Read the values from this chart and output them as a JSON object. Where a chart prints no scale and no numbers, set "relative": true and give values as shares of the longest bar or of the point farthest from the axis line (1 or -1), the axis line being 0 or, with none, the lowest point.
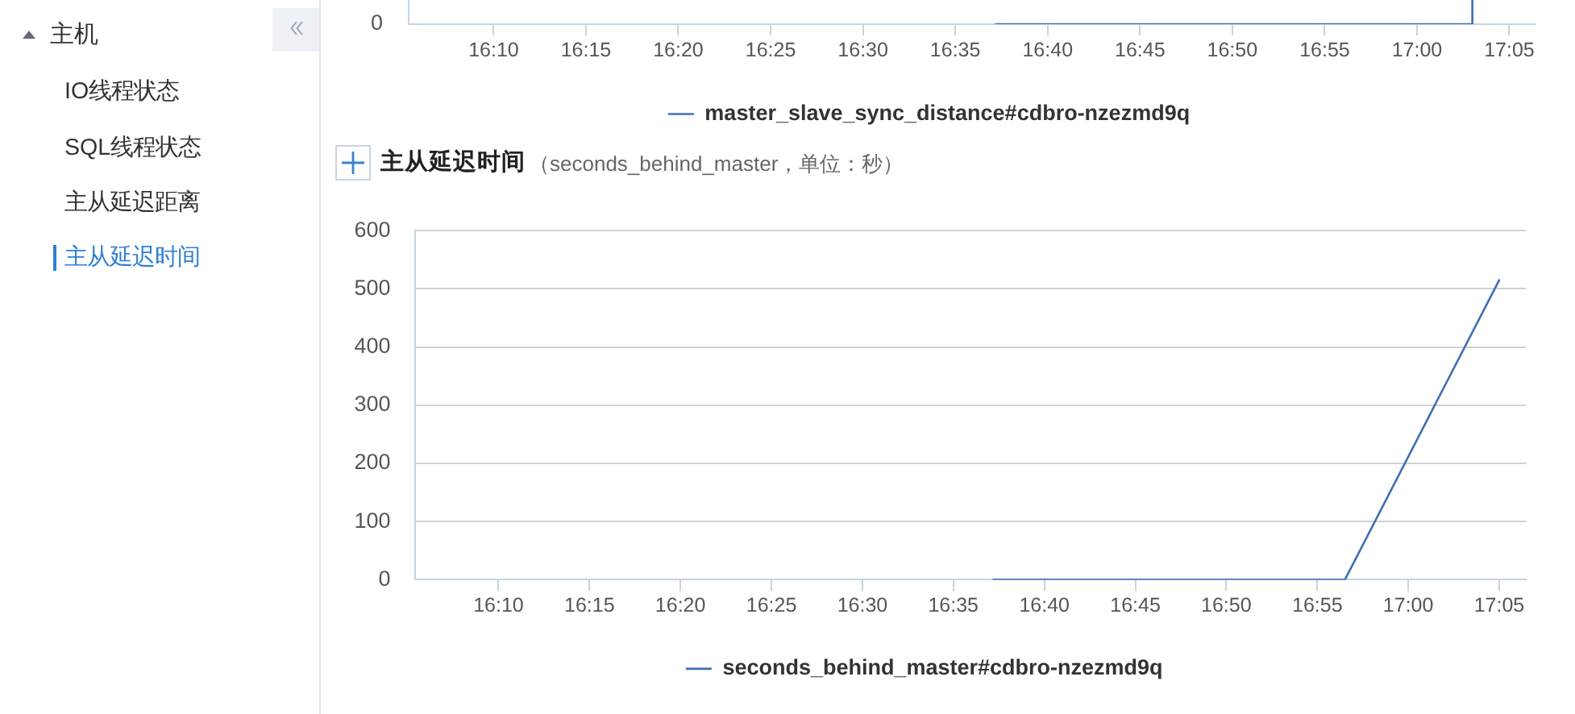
{
  "chart_data": [
    {
      "type": "other",
      "title": "主机",
      "annotations": [
        "IO线程状态",
        "SQL线程状态",
        "主从延迟距离",
        "主从延迟时间"
      ]
    },
    {
      "type": "line",
      "relative": true,
      "x": [
        16.62,
        17.05,
        17.05
      ],
      "xlim": [
        16.09,
        17.107
      ],
      "xticks": [
        {
          "value": 16.1667,
          "label": "16:10"
        },
        {
          "value": 16.25,
          "label": "16:15"
        },
        {
          "value": 16.3333,
          "label": "16:20"
        },
        {
          "value": 16.4167,
          "label": "16:25"
        },
        {
          "value": 16.5,
          "label": "16:30"
        },
        {
          "value": 16.5833,
          "label": "16:35"
        },
        {
          "value": 16.6667,
          "label": "16:40"
        },
        {
          "value": 16.75,
          "label": "16:45"
        },
        {
          "value": 16.8333,
          "label": "16:50"
        },
        {
          "value": 16.9167,
          "label": "16:55"
        },
        {
          "value": 17,
          "label": "17:00"
        },
        {
          "value": 17.0833,
          "label": "17:05"
        }
      ],
      "series": [
        {
          "name": "master_slave_sync_distance#cdbro-nzezmd9q",
          "color": "#3d6fb4",
          "values": [
            0,
            0,
            1
          ]
        }
      ],
      "annotations": [
        "0"
      ],
      "legend": "bottom",
      "marker": "none"
    },
    {
      "type": "line",
      "title": "主从延迟时间",
      "subtitle": "（seconds_behind_master，单位：秒）",
      "x": [
        16.62,
        16.942,
        17.0833
      ],
      "xlim": [
        16.09,
        17.108
      ],
      "xticks": [
        {
          "value": 16.1667,
          "label": "16:10"
        },
        {
          "value": 16.25,
          "label": "16:15"
        },
        {
          "value": 16.3333,
          "label": "16:20"
        },
        {
          "value": 16.4167,
          "label": "16:25"
        },
        {
          "value": 16.5,
          "label": "16:30"
        },
        {
          "value": 16.5833,
          "label": "16:35"
        },
        {
          "value": 16.6667,
          "label": "16:40"
        },
        {
          "value": 16.75,
          "label": "16:45"
        },
        {
          "value": 16.8333,
          "label": "16:50"
        },
        {
          "value": 16.9167,
          "label": "16:55"
        },
        {
          "value": 17,
          "label": "17:00"
        },
        {
          "value": 17.0833,
          "label": "17:05"
        }
      ],
      "ylim": [
        0,
        600
      ],
      "yticks": [
        0,
        100,
        200,
        300,
        400,
        500,
        600
      ],
      "series": [
        {
          "name": "seconds_behind_master#cdbro-nzezmd9q",
          "color": "#3d6fb4",
          "values": [
            0,
            0,
            515
          ]
        }
      ],
      "legend": "bottom",
      "marker": "none",
      "grid": "y"
    }
  ]
}
